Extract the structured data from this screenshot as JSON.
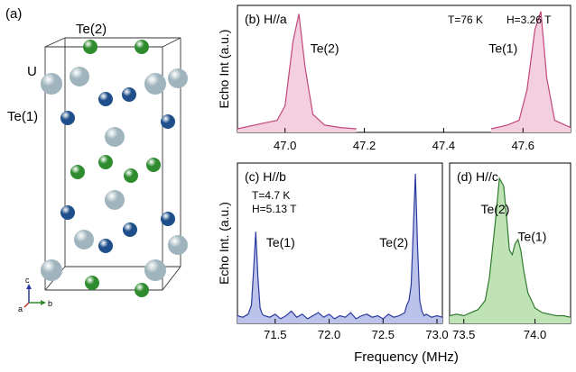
{
  "crystal": {
    "panel_label": "(a)",
    "labels": {
      "te2": "Te(2)",
      "u": "U",
      "te1": "Te(1)"
    },
    "axes": {
      "a": "a",
      "b": "b",
      "c": "c"
    },
    "colors": {
      "u": "#9fb4bd",
      "te1": "#1f4f8a",
      "te2": "#2e8b2e"
    }
  },
  "panels": [
    {
      "id": "b",
      "title": "(b) H//a",
      "conditions": [
        "T=76 K",
        "H=3.26 T"
      ],
      "ylabel": "Echo Int (a.u.)",
      "xticks": [
        47.0,
        47.2,
        47.4,
        47.6
      ],
      "xlim": [
        46.88,
        47.72
      ],
      "ylim": [
        0,
        1.05
      ],
      "color": "#c2477a",
      "fill": "#f4cfe0",
      "peak_labels": [
        {
          "text": "Te(2)",
          "x": 47.1,
          "y": 0.66
        },
        {
          "text": "Te(1)",
          "x": 47.55,
          "y": 0.66
        }
      ],
      "segments": [
        {
          "x": [
            46.88,
            46.95,
            46.98,
            47.0,
            47.02,
            47.035,
            47.05,
            47.07,
            47.1,
            47.14,
            47.18
          ],
          "y": [
            0.03,
            0.08,
            0.1,
            0.22,
            0.75,
            0.98,
            0.55,
            0.15,
            0.06,
            0.04,
            0.03
          ]
        },
        {
          "x": [
            47.52,
            47.56,
            47.59,
            47.61,
            47.63,
            47.645,
            47.66,
            47.68,
            47.72
          ],
          "y": [
            0.03,
            0.06,
            0.1,
            0.35,
            0.85,
            1.0,
            0.45,
            0.1,
            0.04
          ]
        }
      ]
    },
    {
      "id": "c",
      "title": "(c) H//b",
      "conditions": [
        "T=4.7 K",
        "H=5.13 T"
      ],
      "ylabel": "Echo Int. (a.u.)",
      "xticks": [
        71.5,
        72.0,
        72.5,
        73.0
      ],
      "xlim": [
        71.15,
        73.05
      ],
      "ylim": [
        0,
        1.05
      ],
      "color": "#2a3a9e",
      "fill": "#bcc3ea",
      "peak_labels": [
        {
          "text": "Te(1)",
          "x": 71.55,
          "y": 0.5
        },
        {
          "text": "Te(2)",
          "x": 72.6,
          "y": 0.5
        }
      ],
      "segments": [
        {
          "x": [
            71.15,
            71.2,
            71.25,
            71.28,
            71.3,
            71.32,
            71.34,
            71.36,
            71.38,
            71.4,
            71.45,
            71.5,
            71.55,
            71.6,
            71.65,
            71.7,
            71.75,
            71.8,
            71.85,
            71.9,
            71.95,
            72.0,
            72.05,
            72.1,
            72.15,
            72.2,
            72.25,
            72.3,
            72.35,
            72.4,
            72.45,
            72.5,
            72.55,
            72.6,
            72.65,
            72.7,
            72.72,
            72.74,
            72.76,
            72.78,
            72.8,
            72.82,
            72.84,
            72.86,
            72.88,
            72.9,
            72.95,
            73.0,
            73.05
          ],
          "y": [
            0.05,
            0.04,
            0.06,
            0.12,
            0.35,
            0.6,
            0.3,
            0.1,
            0.06,
            0.05,
            0.04,
            0.06,
            0.03,
            0.05,
            0.08,
            0.04,
            0.06,
            0.03,
            0.05,
            0.07,
            0.04,
            0.06,
            0.03,
            0.05,
            0.04,
            0.07,
            0.03,
            0.05,
            0.06,
            0.04,
            0.05,
            0.03,
            0.06,
            0.04,
            0.05,
            0.07,
            0.12,
            0.15,
            0.25,
            0.6,
            0.98,
            0.5,
            0.15,
            0.08,
            0.05,
            0.06,
            0.04,
            0.05,
            0.04
          ]
        }
      ]
    },
    {
      "id": "d",
      "title": "(d) H//c",
      "conditions": [],
      "ylabel": "",
      "xticks": [
        73.5,
        74.0
      ],
      "xlim": [
        73.4,
        74.25
      ],
      "ylim": [
        0,
        1.05
      ],
      "color": "#2f7a2f",
      "fill": "#bfe3b5",
      "peak_labels": [
        {
          "text": "Te(2)",
          "x": 73.72,
          "y": 0.72
        },
        {
          "text": "Te(1)",
          "x": 73.98,
          "y": 0.54
        }
      ],
      "segments": [
        {
          "x": [
            73.4,
            73.45,
            73.5,
            73.55,
            73.6,
            73.65,
            73.68,
            73.72,
            73.75,
            73.78,
            73.8,
            73.82,
            73.84,
            73.86,
            73.88,
            73.9,
            73.92,
            73.95,
            74.0,
            74.05,
            74.1,
            74.15,
            74.2,
            74.25
          ],
          "y": [
            0.05,
            0.06,
            0.05,
            0.07,
            0.09,
            0.15,
            0.3,
            0.65,
            0.95,
            0.9,
            0.7,
            0.48,
            0.45,
            0.52,
            0.55,
            0.48,
            0.35,
            0.2,
            0.1,
            0.07,
            0.06,
            0.05,
            0.05,
            0.04
          ]
        }
      ]
    }
  ],
  "xlabel": "Frequency (MHz)"
}
